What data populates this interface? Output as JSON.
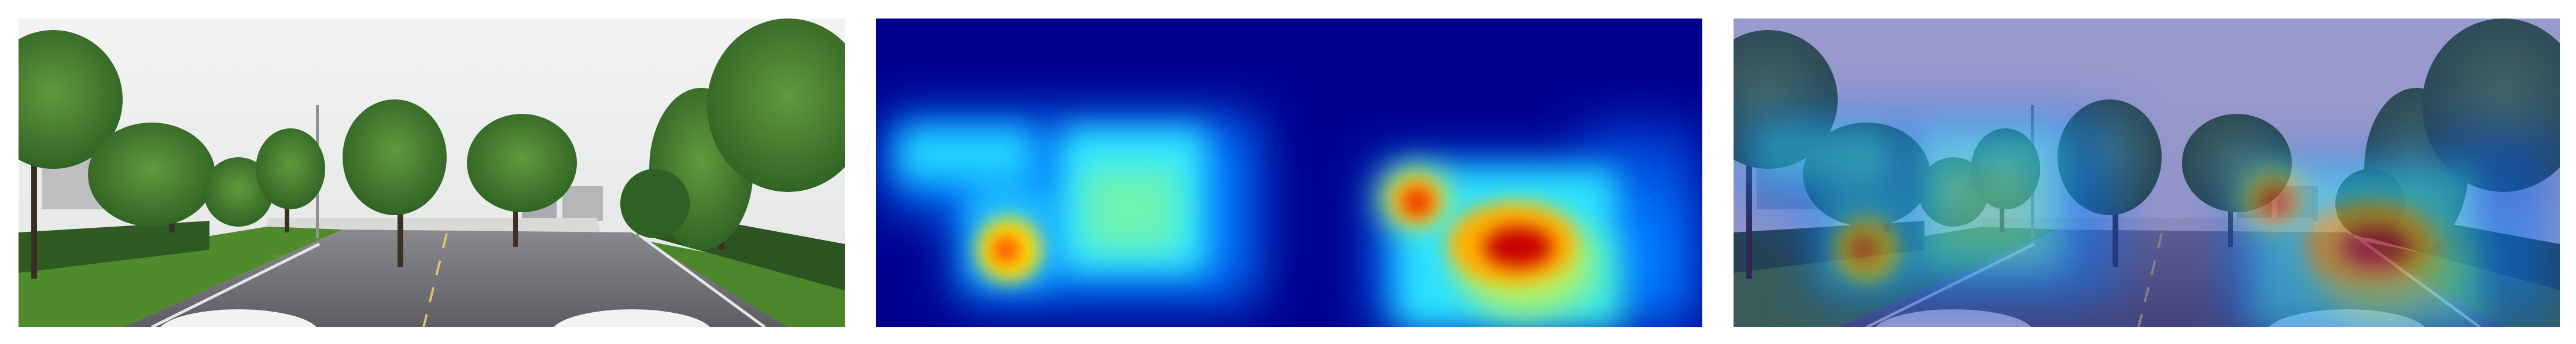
{
  "figure": {
    "panels": [
      {
        "role": "original-street-view-photo"
      },
      {
        "role": "attention-heatmap",
        "colormap": "jet"
      },
      {
        "role": "heatmap-overlay-on-photo"
      }
    ],
    "colors": {
      "sky": "#eef0ee",
      "road": "#6e6e72",
      "grass": "#4f8a2c",
      "hedge": "#2f5a22",
      "heatmap_low": "#00008f",
      "heatmap_high": "#b00000",
      "overlay_tint": "#1e1e9a"
    }
  }
}
